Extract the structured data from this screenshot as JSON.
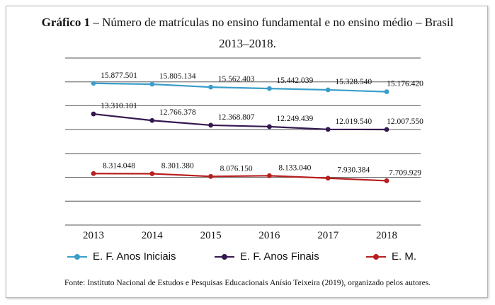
{
  "title": {
    "label": "Gráfico 1",
    "text": " – Número de matrículas no ensino fundamental e no ensino médio – Brasil",
    "line2": "2013–2018."
  },
  "source": "Fonte: Instituto Nacional de Estudos e Pesquisas Educacionais Anísio Teixeira (2019), organizado pelos autores.",
  "colors": {
    "anos_iniciais": "#3a9ec9",
    "anos_finais": "#35184f",
    "em": "#b81f1f",
    "grid": "#555555"
  },
  "chart_data": {
    "type": "line",
    "categories": [
      "2013",
      "2014",
      "2015",
      "2016",
      "2017",
      "2018"
    ],
    "series": [
      {
        "name": "E. F. Anos Iniciais",
        "values": [
          15877501,
          15805134,
          15562403,
          15442039,
          15328540,
          15176420
        ],
        "labels": [
          "15.877.501",
          "15.805.134",
          "15.562.403",
          "15.442.039",
          "15.328.540",
          "15.176.420"
        ],
        "color": "#3a9ec9"
      },
      {
        "name": "E. F. Anos Finais",
        "values": [
          13310101,
          12766378,
          12368807,
          12249439,
          12019540,
          12007550
        ],
        "labels": [
          "13.310.101",
          "12.766.378",
          "12.368.807",
          "12.249.439",
          "12.019.540",
          "12.007.550"
        ],
        "color": "#35184f"
      },
      {
        "name": "E. M.",
        "values": [
          8314048,
          8301380,
          8076150,
          8133040,
          7930384,
          7709929
        ],
        "labels": [
          "8.314.048",
          "8.301.380",
          "8.076.150",
          "8.133.040",
          "7.930.384",
          "7.709.929"
        ],
        "color": "#b81f1f"
      }
    ],
    "ylim": [
      4000000,
      18000000
    ],
    "grid": true,
    "legend": "bottom"
  }
}
